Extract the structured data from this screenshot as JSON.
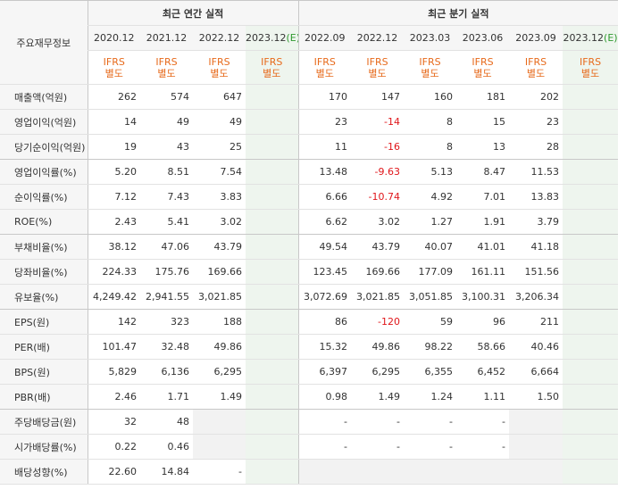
{
  "header": {
    "row_label": "주요재무정보",
    "annual_title": "최근 연간 실적",
    "quarterly_title": "최근 분기 실적",
    "annual_periods": [
      "2020.12",
      "2021.12",
      "2022.12",
      "2023.12"
    ],
    "quarterly_periods": [
      "2022.09",
      "2022.12",
      "2023.03",
      "2023.06",
      "2023.09",
      "2023.12"
    ],
    "estimate_mark": "(E)",
    "ifrs_line1": "IFRS",
    "ifrs_line2": "별도"
  },
  "rows": [
    {
      "label": "매출액(억원)",
      "annual": [
        "262",
        "574",
        "647",
        ""
      ],
      "quarterly": [
        "170",
        "147",
        "160",
        "181",
        "202",
        ""
      ]
    },
    {
      "label": "영업이익(억원)",
      "annual": [
        "14",
        "49",
        "49",
        ""
      ],
      "quarterly": [
        "23",
        "-14",
        "8",
        "15",
        "23",
        ""
      ]
    },
    {
      "label": "당기순이익(억원)",
      "annual": [
        "19",
        "43",
        "25",
        ""
      ],
      "quarterly": [
        "11",
        "-16",
        "8",
        "13",
        "28",
        ""
      ]
    },
    {
      "label": "영업이익률(%)",
      "annual": [
        "5.20",
        "8.51",
        "7.54",
        ""
      ],
      "quarterly": [
        "13.48",
        "-9.63",
        "5.13",
        "8.47",
        "11.53",
        ""
      ]
    },
    {
      "label": "순이익률(%)",
      "annual": [
        "7.12",
        "7.43",
        "3.83",
        ""
      ],
      "quarterly": [
        "6.66",
        "-10.74",
        "4.92",
        "7.01",
        "13.83",
        ""
      ]
    },
    {
      "label": "ROE(%)",
      "annual": [
        "2.43",
        "5.41",
        "3.02",
        ""
      ],
      "quarterly": [
        "6.62",
        "3.02",
        "1.27",
        "1.91",
        "3.79",
        ""
      ]
    },
    {
      "label": "부채비율(%)",
      "annual": [
        "38.12",
        "47.06",
        "43.79",
        ""
      ],
      "quarterly": [
        "49.54",
        "43.79",
        "40.07",
        "41.01",
        "41.18",
        ""
      ]
    },
    {
      "label": "당좌비율(%)",
      "annual": [
        "224.33",
        "175.76",
        "169.66",
        ""
      ],
      "quarterly": [
        "123.45",
        "169.66",
        "177.09",
        "161.11",
        "151.56",
        ""
      ]
    },
    {
      "label": "유보율(%)",
      "annual": [
        "4,249.42",
        "2,941.55",
        "3,021.85",
        ""
      ],
      "quarterly": [
        "3,072.69",
        "3,021.85",
        "3,051.85",
        "3,100.31",
        "3,206.34",
        ""
      ]
    },
    {
      "label": "EPS(원)",
      "annual": [
        "142",
        "323",
        "188",
        ""
      ],
      "quarterly": [
        "86",
        "-120",
        "59",
        "96",
        "211",
        ""
      ]
    },
    {
      "label": "PER(배)",
      "annual": [
        "101.47",
        "32.48",
        "49.86",
        ""
      ],
      "quarterly": [
        "15.32",
        "49.86",
        "98.22",
        "58.66",
        "40.46",
        ""
      ]
    },
    {
      "label": "BPS(원)",
      "annual": [
        "5,829",
        "6,136",
        "6,295",
        ""
      ],
      "quarterly": [
        "6,397",
        "6,295",
        "6,355",
        "6,452",
        "6,664",
        ""
      ]
    },
    {
      "label": "PBR(배)",
      "annual": [
        "2.46",
        "1.71",
        "1.49",
        ""
      ],
      "quarterly": [
        "0.98",
        "1.49",
        "1.24",
        "1.11",
        "1.50",
        ""
      ]
    },
    {
      "label": "주당배당금(원)",
      "annual": [
        "32",
        "48",
        null,
        ""
      ],
      "quarterly": [
        "-",
        "-",
        "-",
        "-",
        null,
        ""
      ]
    },
    {
      "label": "시가배당률(%)",
      "annual": [
        "0.22",
        "0.46",
        null,
        ""
      ],
      "quarterly": [
        "-",
        "-",
        "-",
        "-",
        null,
        ""
      ]
    },
    {
      "label": "배당성향(%)",
      "annual": [
        "22.60",
        "14.84",
        "-",
        ""
      ],
      "quarterly": [
        null,
        null,
        null,
        null,
        null,
        ""
      ]
    }
  ],
  "group_end_rows": [
    2,
    5,
    8,
    12
  ],
  "colors": {
    "negative": "#e0161a",
    "ifrs": "#e76a1b",
    "estimate_bg": "#eef5ee",
    "estimate_text": "#2f9a2f"
  }
}
